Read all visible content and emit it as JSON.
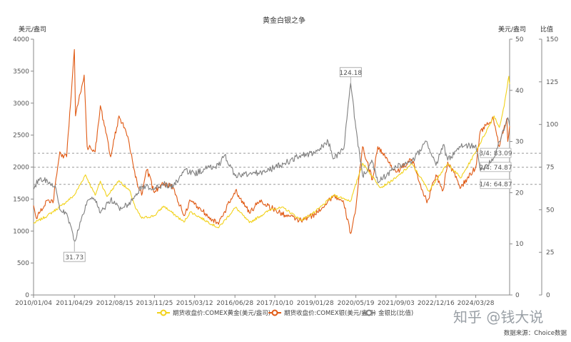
{
  "chart_data": {
    "type": "line",
    "title": "黄金白银之争",
    "left_axis_label": "美元/盎司",
    "right_axis_label_1": "美元/盎司",
    "right_axis_label_2": "比值",
    "left_axis": {
      "min": 0,
      "max": 4000,
      "ticks": [
        "0",
        "500",
        "1000",
        "1500",
        "2000",
        "2500",
        "3000",
        "3500",
        "4000"
      ]
    },
    "right_axis_1": {
      "min": 0,
      "max": 50,
      "ticks": [
        "0",
        "10",
        "20",
        "30",
        "40",
        "50"
      ]
    },
    "right_axis_2": {
      "min": 0,
      "max": 150,
      "ticks": [
        "0",
        "25",
        "50",
        "75",
        "100",
        "125",
        "150"
      ]
    },
    "x_range": [
      "2010/01/04",
      "2025/04/30"
    ],
    "x_ticks": [
      "2010/01/04",
      "2011/04/29",
      "2012/08/15",
      "2013/11/25",
      "2015/03/12",
      "2016/06/28",
      "2017/10/10",
      "2019/01/28",
      "2020/05/19",
      "2021/09/03",
      "2022/12/16",
      "2024/03/28"
    ],
    "series": [
      {
        "name": "期货收盘价:COMEX黄金(美元/盎司)",
        "axis": "left",
        "color": "#f2d21b",
        "points": [
          [
            "2010/01/04",
            1120
          ],
          [
            "2010/06/15",
            1240
          ],
          [
            "2010/12/01",
            1400
          ],
          [
            "2011/04/29",
            1560
          ],
          [
            "2011/09/06",
            1880
          ],
          [
            "2011/12/29",
            1560
          ],
          [
            "2012/02/28",
            1780
          ],
          [
            "2012/05/15",
            1540
          ],
          [
            "2012/10/04",
            1790
          ],
          [
            "2013/02/15",
            1610
          ],
          [
            "2013/04/15",
            1360
          ],
          [
            "2013/06/28",
            1200
          ],
          [
            "2013/11/25",
            1240
          ],
          [
            "2014/03/14",
            1390
          ],
          [
            "2014/11/06",
            1140
          ],
          [
            "2015/01/22",
            1300
          ],
          [
            "2015/12/17",
            1050
          ],
          [
            "2016/07/06",
            1370
          ],
          [
            "2016/12/15",
            1130
          ],
          [
            "2017/09/08",
            1350
          ],
          [
            "2018/01/25",
            1360
          ],
          [
            "2018/08/16",
            1170
          ],
          [
            "2019/01/28",
            1300
          ],
          [
            "2019/09/04",
            1560
          ],
          [
            "2020/03/19",
            1470
          ],
          [
            "2020/08/06",
            2060
          ],
          [
            "2021/03/08",
            1680
          ],
          [
            "2021/09/03",
            1830
          ],
          [
            "2022/03/08",
            2050
          ],
          [
            "2022/09/28",
            1620
          ],
          [
            "2022/12/16",
            1800
          ],
          [
            "2023/05/04",
            2050
          ],
          [
            "2023/10/05",
            1830
          ],
          [
            "2024/03/28",
            2240
          ],
          [
            "2024/10/30",
            2800
          ],
          [
            "2024/12/30",
            2620
          ],
          [
            "2025/02/24",
            2950
          ],
          [
            "2025/04/21",
            3420
          ],
          [
            "2025/04/30",
            3300
          ]
        ]
      },
      {
        "name": "期货收盘价:COMEX银(美元/盎司)",
        "axis": "right1",
        "color": "#e05a14",
        "points": [
          [
            "2010/01/04",
            17.5
          ],
          [
            "2010/02/05",
            15
          ],
          [
            "2010/06/15",
            18.5
          ],
          [
            "2010/08/20",
            18
          ],
          [
            "2010/11/09",
            28
          ],
          [
            "2010/12/01",
            27
          ],
          [
            "2011/01/28",
            27
          ],
          [
            "2011/04/29",
            48
          ],
          [
            "2011/05/12",
            35
          ],
          [
            "2011/08/22",
            43
          ],
          [
            "2011/09/26",
            29
          ],
          [
            "2011/12/29",
            28
          ],
          [
            "2012/02/28",
            37
          ],
          [
            "2012/06/28",
            27
          ],
          [
            "2012/10/04",
            35
          ],
          [
            "2013/01/15",
            31
          ],
          [
            "2013/04/15",
            23
          ],
          [
            "2013/06/28",
            19.5
          ],
          [
            "2013/08/28",
            24.5
          ],
          [
            "2013/11/25",
            20
          ],
          [
            "2014/02/24",
            22
          ],
          [
            "2014/06/30",
            21
          ],
          [
            "2014/11/06",
            15.5
          ],
          [
            "2015/01/22",
            18.5
          ],
          [
            "2015/12/17",
            13.8
          ],
          [
            "2016/07/06",
            20.5
          ],
          [
            "2016/12/15",
            16
          ],
          [
            "2017/04/15",
            18.5
          ],
          [
            "2017/12/12",
            16
          ],
          [
            "2018/08/16",
            14.5
          ],
          [
            "2019/01/28",
            15.8
          ],
          [
            "2019/09/04",
            19.5
          ],
          [
            "2019/12/30",
            17.8
          ],
          [
            "2020/03/19",
            12
          ],
          [
            "2020/05/19",
            17
          ],
          [
            "2020/08/06",
            29
          ],
          [
            "2020/11/30",
            22.5
          ],
          [
            "2021/02/01",
            29
          ],
          [
            "2021/09/03",
            24
          ],
          [
            "2022/03/08",
            26.5
          ],
          [
            "2022/09/01",
            18
          ],
          [
            "2022/12/16",
            23.5
          ],
          [
            "2023/03/10",
            20.5
          ],
          [
            "2023/05/04",
            26
          ],
          [
            "2023/10/05",
            21
          ],
          [
            "2024/03/28",
            25
          ],
          [
            "2024/05/20",
            32
          ],
          [
            "2024/10/22",
            34.5
          ],
          [
            "2024/12/30",
            29
          ],
          [
            "2025/03/28",
            34.5
          ],
          [
            "2025/04/08",
            30
          ],
          [
            "2025/04/30",
            33
          ]
        ]
      },
      {
        "name": "金银比(比值)",
        "axis": "right2",
        "color": "#808080",
        "points": [
          [
            "2010/01/04",
            62
          ],
          [
            "2010/03/01",
            68
          ],
          [
            "2010/06/15",
            67
          ],
          [
            "2010/09/15",
            64
          ],
          [
            "2010/11/09",
            50
          ],
          [
            "2011/01/28",
            48
          ],
          [
            "2011/04/29",
            31.73
          ],
          [
            "2011/06/15",
            38
          ],
          [
            "2011/09/26",
            55
          ],
          [
            "2011/12/29",
            56
          ],
          [
            "2012/02/28",
            48
          ],
          [
            "2012/06/28",
            56
          ],
          [
            "2012/10/04",
            51
          ],
          [
            "2013/01/15",
            53
          ],
          [
            "2013/04/15",
            58
          ],
          [
            "2013/06/28",
            64
          ],
          [
            "2013/11/25",
            62
          ],
          [
            "2014/03/14",
            65
          ],
          [
            "2014/06/30",
            63
          ],
          [
            "2014/11/06",
            73
          ],
          [
            "2015/03/12",
            71
          ],
          [
            "2015/07/15",
            74
          ],
          [
            "2015/12/17",
            76
          ],
          [
            "2016/02/29",
            82
          ],
          [
            "2016/06/28",
            70
          ],
          [
            "2016/12/15",
            71
          ],
          [
            "2017/06/15",
            72
          ],
          [
            "2017/10/10",
            75
          ],
          [
            "2018/01/25",
            77
          ],
          [
            "2018/08/16",
            82
          ],
          [
            "2019/01/28",
            83
          ],
          [
            "2019/06/28",
            90
          ],
          [
            "2019/09/04",
            80
          ],
          [
            "2019/12/30",
            86
          ],
          [
            "2020/03/19",
            124.18
          ],
          [
            "2020/05/19",
            98
          ],
          [
            "2020/08/06",
            70
          ],
          [
            "2020/11/30",
            78
          ],
          [
            "2021/02/01",
            66
          ],
          [
            "2021/09/03",
            75
          ],
          [
            "2022/03/08",
            78
          ],
          [
            "2022/09/01",
            90
          ],
          [
            "2022/12/16",
            76
          ],
          [
            "2023/03/10",
            88
          ],
          [
            "2023/05/04",
            79
          ],
          [
            "2023/10/05",
            87
          ],
          [
            "2024/03/28",
            88
          ],
          [
            "2024/05/20",
            73
          ],
          [
            "2024/10/22",
            80
          ],
          [
            "2024/12/30",
            90
          ],
          [
            "2025/04/08",
            104
          ],
          [
            "2025/04/30",
            99
          ]
        ]
      }
    ],
    "reference_lines": [
      {
        "label": "3/4: 83.09",
        "value": 83.09
      },
      {
        "label": "2/4: 74.87",
        "value": 74.87
      },
      {
        "label": "1/4: 64.87",
        "value": 64.87
      }
    ],
    "annotations": [
      {
        "label": "124.18",
        "date": "2020/03/19",
        "value": 124.18
      },
      {
        "label": "31.73",
        "date": "2011/04/29",
        "value": 31.73
      }
    ],
    "legend_position": "bottom-center",
    "grid": false
  },
  "watermark": "知乎 @钱大说",
  "source": "数据来源：Choice数据"
}
